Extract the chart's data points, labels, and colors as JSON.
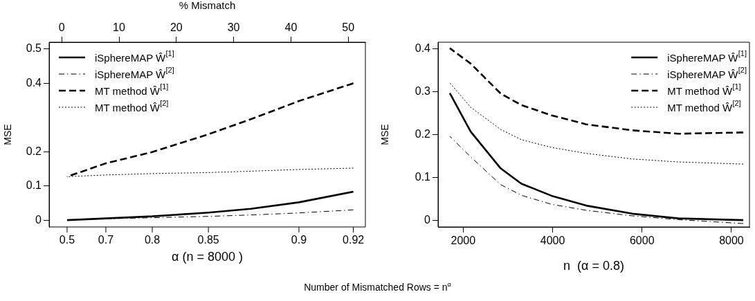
{
  "chart_data": [
    {
      "type": "line",
      "xlabel": "% Mismatch",
      "ylabel": "MSE",
      "annotations": [
        "α  (n =  8000 )",
        "Number of Mismatched Rows = n$^{α}$",
        {
          "text": "0.5",
          "x": 0.93
        },
        {
          "text": "0.7",
          "x": 7.7
        },
        {
          "text": "0.8",
          "x": 15.8
        },
        {
          "text": "0.85",
          "x": 25.6
        },
        {
          "text": "0.9",
          "x": 41.4
        },
        {
          "text": "0.92",
          "x": 50.9
        }
      ],
      "xlim": [
        -2.2,
        53
      ],
      "xticks": [
        0,
        10,
        20,
        30,
        40,
        50
      ],
      "ylim": [
        -0.02,
        0.52
      ],
      "yticks": [
        0,
        0.1,
        0.2,
        0.4,
        0.5
      ],
      "grid": false,
      "legend": "top left",
      "marker": "none",
      "x": [
        0.93,
        7.7,
        15.8,
        25.6,
        33,
        41.4,
        50.9
      ],
      "series": [
        {
          "name": "iSphereMAP Ŵ$^{[1]}$",
          "color": "#000000",
          "line_style": "solid",
          "values": [
            0,
            0.005,
            0.011,
            0.022,
            0.033,
            0.052,
            0.083
          ]
        },
        {
          "name": "iSphereMAP Ŵ$^{[2]}$",
          "color": "#000000",
          "line_style": "dashdot",
          "values": [
            0,
            0.004,
            0.007,
            0.011,
            0.015,
            0.021,
            0.03
          ]
        },
        {
          "name": "MT method Ŵ$^{[1]}$",
          "color": "#000000",
          "line_style": "dashed",
          "values": [
            0.127,
            0.166,
            0.199,
            0.251,
            0.295,
            0.348,
            0.4
          ]
        },
        {
          "name": "MT method Ŵ$^{[2]}$",
          "color": "#000000",
          "line_style": "dotted",
          "values": [
            0.127,
            0.132,
            0.136,
            0.139,
            0.143,
            0.148,
            0.152
          ]
        }
      ]
    },
    {
      "type": "line",
      "xlabel": "n  (α = 0.8)",
      "ylabel": "MSE",
      "xlim": [
        1437,
        8403
      ],
      "xticks": [
        2000,
        4000,
        6000,
        8000
      ],
      "ylim": [
        -0.016,
        0.416
      ],
      "yticks": [
        0,
        0.1,
        0.2,
        0.3,
        0.4
      ],
      "grid": false,
      "legend": "top right",
      "marker": "none",
      "x": [
        1700,
        2166,
        2837,
        3302,
        3975,
        4750,
        5783,
        6817,
        8264
      ],
      "series": [
        {
          "name": "iSphereMAP Ŵ$^{[1]}$",
          "color": "#000000",
          "line_style": "solid",
          "values": [
            0.297,
            0.207,
            0.121,
            0.085,
            0.057,
            0.034,
            0.015,
            0.004,
            0
          ]
        },
        {
          "name": "iSphereMAP Ŵ$^{[2]}$",
          "color": "#000000",
          "line_style": "dashdot",
          "values": [
            0.196,
            0.148,
            0.083,
            0.058,
            0.037,
            0.023,
            0.01,
            0.001,
            -0.008
          ]
        },
        {
          "name": "MT method Ŵ$^{[1]}$",
          "color": "#000000",
          "line_style": "dashed",
          "values": [
            0.402,
            0.366,
            0.296,
            0.269,
            0.245,
            0.224,
            0.21,
            0.202,
            0.205
          ]
        },
        {
          "name": "MT method Ŵ$^{[2]}$",
          "color": "#000000",
          "line_style": "dotted",
          "values": [
            0.321,
            0.264,
            0.212,
            0.188,
            0.17,
            0.156,
            0.143,
            0.136,
            0.131
          ]
        }
      ]
    }
  ]
}
